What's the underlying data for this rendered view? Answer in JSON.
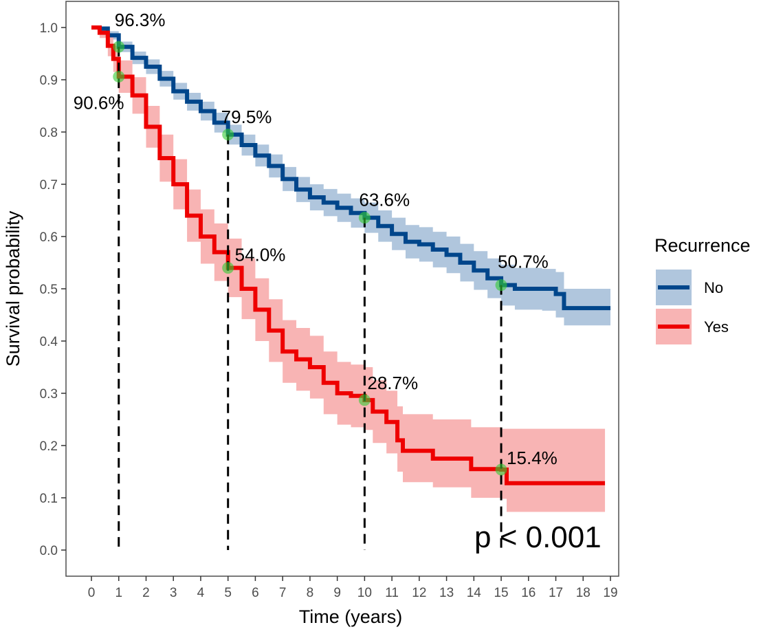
{
  "chart_data": {
    "type": "line",
    "subtype": "kaplan-meier step curves with confidence bands",
    "xlabel": "Time (years)",
    "ylabel": "Survival probability",
    "xlim": [
      0,
      19
    ],
    "ylim": [
      0,
      1
    ],
    "x_ticks": [
      0,
      1,
      2,
      3,
      4,
      5,
      6,
      7,
      8,
      9,
      10,
      11,
      12,
      13,
      14,
      15,
      16,
      17,
      18,
      19
    ],
    "y_ticks": [
      "0.0",
      "0.1",
      "0.2",
      "0.3",
      "0.4",
      "0.5",
      "0.6",
      "0.7",
      "0.8",
      "0.9",
      "1.0"
    ],
    "grid": false,
    "legend": {
      "title": "Recurrence",
      "placement": "right"
    },
    "annotation": "p < 0.001",
    "marker_color": "#33cc33",
    "series": [
      {
        "name": "No",
        "color": "#00468b",
        "band_color": "#b0c6dd",
        "t": [
          0,
          0.3,
          0.6,
          1,
          1.5,
          2,
          2.5,
          3,
          3.5,
          4,
          4.5,
          5,
          5.5,
          6,
          6.5,
          7,
          7.5,
          8,
          8.5,
          9,
          9.5,
          10,
          10.5,
          11,
          11.5,
          12,
          12.5,
          13,
          13.5,
          14,
          14.5,
          15,
          15.5,
          16.5,
          17,
          17.3,
          19
        ],
        "surv": [
          1.0,
          0.998,
          0.985,
          0.963,
          0.942,
          0.925,
          0.902,
          0.878,
          0.858,
          0.84,
          0.818,
          0.795,
          0.775,
          0.755,
          0.735,
          0.71,
          0.69,
          0.675,
          0.665,
          0.655,
          0.645,
          0.636,
          0.62,
          0.605,
          0.59,
          0.585,
          0.575,
          0.565,
          0.55,
          0.535,
          0.52,
          0.507,
          0.5,
          0.5,
          0.49,
          0.463,
          0.463
        ],
        "lower": [
          1.0,
          0.994,
          0.977,
          0.953,
          0.93,
          0.911,
          0.887,
          0.862,
          0.841,
          0.822,
          0.799,
          0.776,
          0.755,
          0.734,
          0.713,
          0.687,
          0.666,
          0.65,
          0.639,
          0.628,
          0.617,
          0.607,
          0.59,
          0.574,
          0.558,
          0.552,
          0.541,
          0.53,
          0.514,
          0.498,
          0.482,
          0.468,
          0.46,
          0.458,
          0.445,
          0.43,
          0.43
        ],
        "upper": [
          1.0,
          1.0,
          0.993,
          0.973,
          0.954,
          0.939,
          0.917,
          0.894,
          0.875,
          0.858,
          0.837,
          0.814,
          0.795,
          0.776,
          0.757,
          0.733,
          0.714,
          0.7,
          0.691,
          0.682,
          0.673,
          0.665,
          0.65,
          0.636,
          0.622,
          0.618,
          0.609,
          0.6,
          0.586,
          0.572,
          0.558,
          0.546,
          0.54,
          0.538,
          0.532,
          0.5,
          0.5
        ]
      },
      {
        "name": "Yes",
        "color": "#ee0000",
        "band_color": "#f8b4b4",
        "t": [
          0,
          0.3,
          0.6,
          0.8,
          1,
          1.5,
          2,
          2.5,
          3,
          3.5,
          4,
          4.5,
          5,
          5.5,
          6,
          6.5,
          7,
          7.5,
          8,
          8.5,
          9,
          9.5,
          10,
          10.3,
          10.8,
          11.2,
          11.4,
          12.5,
          13.9,
          15,
          15.2,
          18.8
        ],
        "surv": [
          1.0,
          0.99,
          0.965,
          0.94,
          0.906,
          0.87,
          0.81,
          0.75,
          0.7,
          0.64,
          0.6,
          0.57,
          0.54,
          0.5,
          0.46,
          0.42,
          0.38,
          0.365,
          0.35,
          0.32,
          0.3,
          0.295,
          0.287,
          0.265,
          0.245,
          0.21,
          0.19,
          0.175,
          0.155,
          0.154,
          0.128,
          0.128
        ],
        "lower": [
          1.0,
          0.98,
          0.945,
          0.915,
          0.875,
          0.835,
          0.77,
          0.705,
          0.652,
          0.59,
          0.548,
          0.515,
          0.484,
          0.442,
          0.4,
          0.36,
          0.32,
          0.305,
          0.29,
          0.26,
          0.24,
          0.235,
          0.23,
          0.205,
          0.185,
          0.15,
          0.13,
          0.12,
          0.1,
          0.098,
          0.073,
          0.073
        ],
        "upper": [
          1.0,
          1.0,
          0.985,
          0.965,
          0.937,
          0.905,
          0.85,
          0.795,
          0.748,
          0.69,
          0.652,
          0.625,
          0.596,
          0.558,
          0.52,
          0.48,
          0.44,
          0.425,
          0.41,
          0.38,
          0.36,
          0.355,
          0.35,
          0.325,
          0.305,
          0.275,
          0.26,
          0.25,
          0.235,
          0.232,
          0.232,
          0.232
        ]
      }
    ],
    "landmarks": [
      {
        "series": "No",
        "t": 1,
        "value": 0.963,
        "label": "96.3%"
      },
      {
        "series": "Yes",
        "t": 1,
        "value": 0.906,
        "label": "90.6%"
      },
      {
        "series": "No",
        "t": 5,
        "value": 0.795,
        "label": "79.5%"
      },
      {
        "series": "Yes",
        "t": 5,
        "value": 0.54,
        "label": "54.0%"
      },
      {
        "series": "No",
        "t": 10,
        "value": 0.636,
        "label": "63.6%"
      },
      {
        "series": "Yes",
        "t": 10,
        "value": 0.287,
        "label": "28.7%"
      },
      {
        "series": "No",
        "t": 15,
        "value": 0.507,
        "label": "50.7%"
      },
      {
        "series": "Yes",
        "t": 15,
        "value": 0.154,
        "label": "15.4%"
      }
    ]
  }
}
